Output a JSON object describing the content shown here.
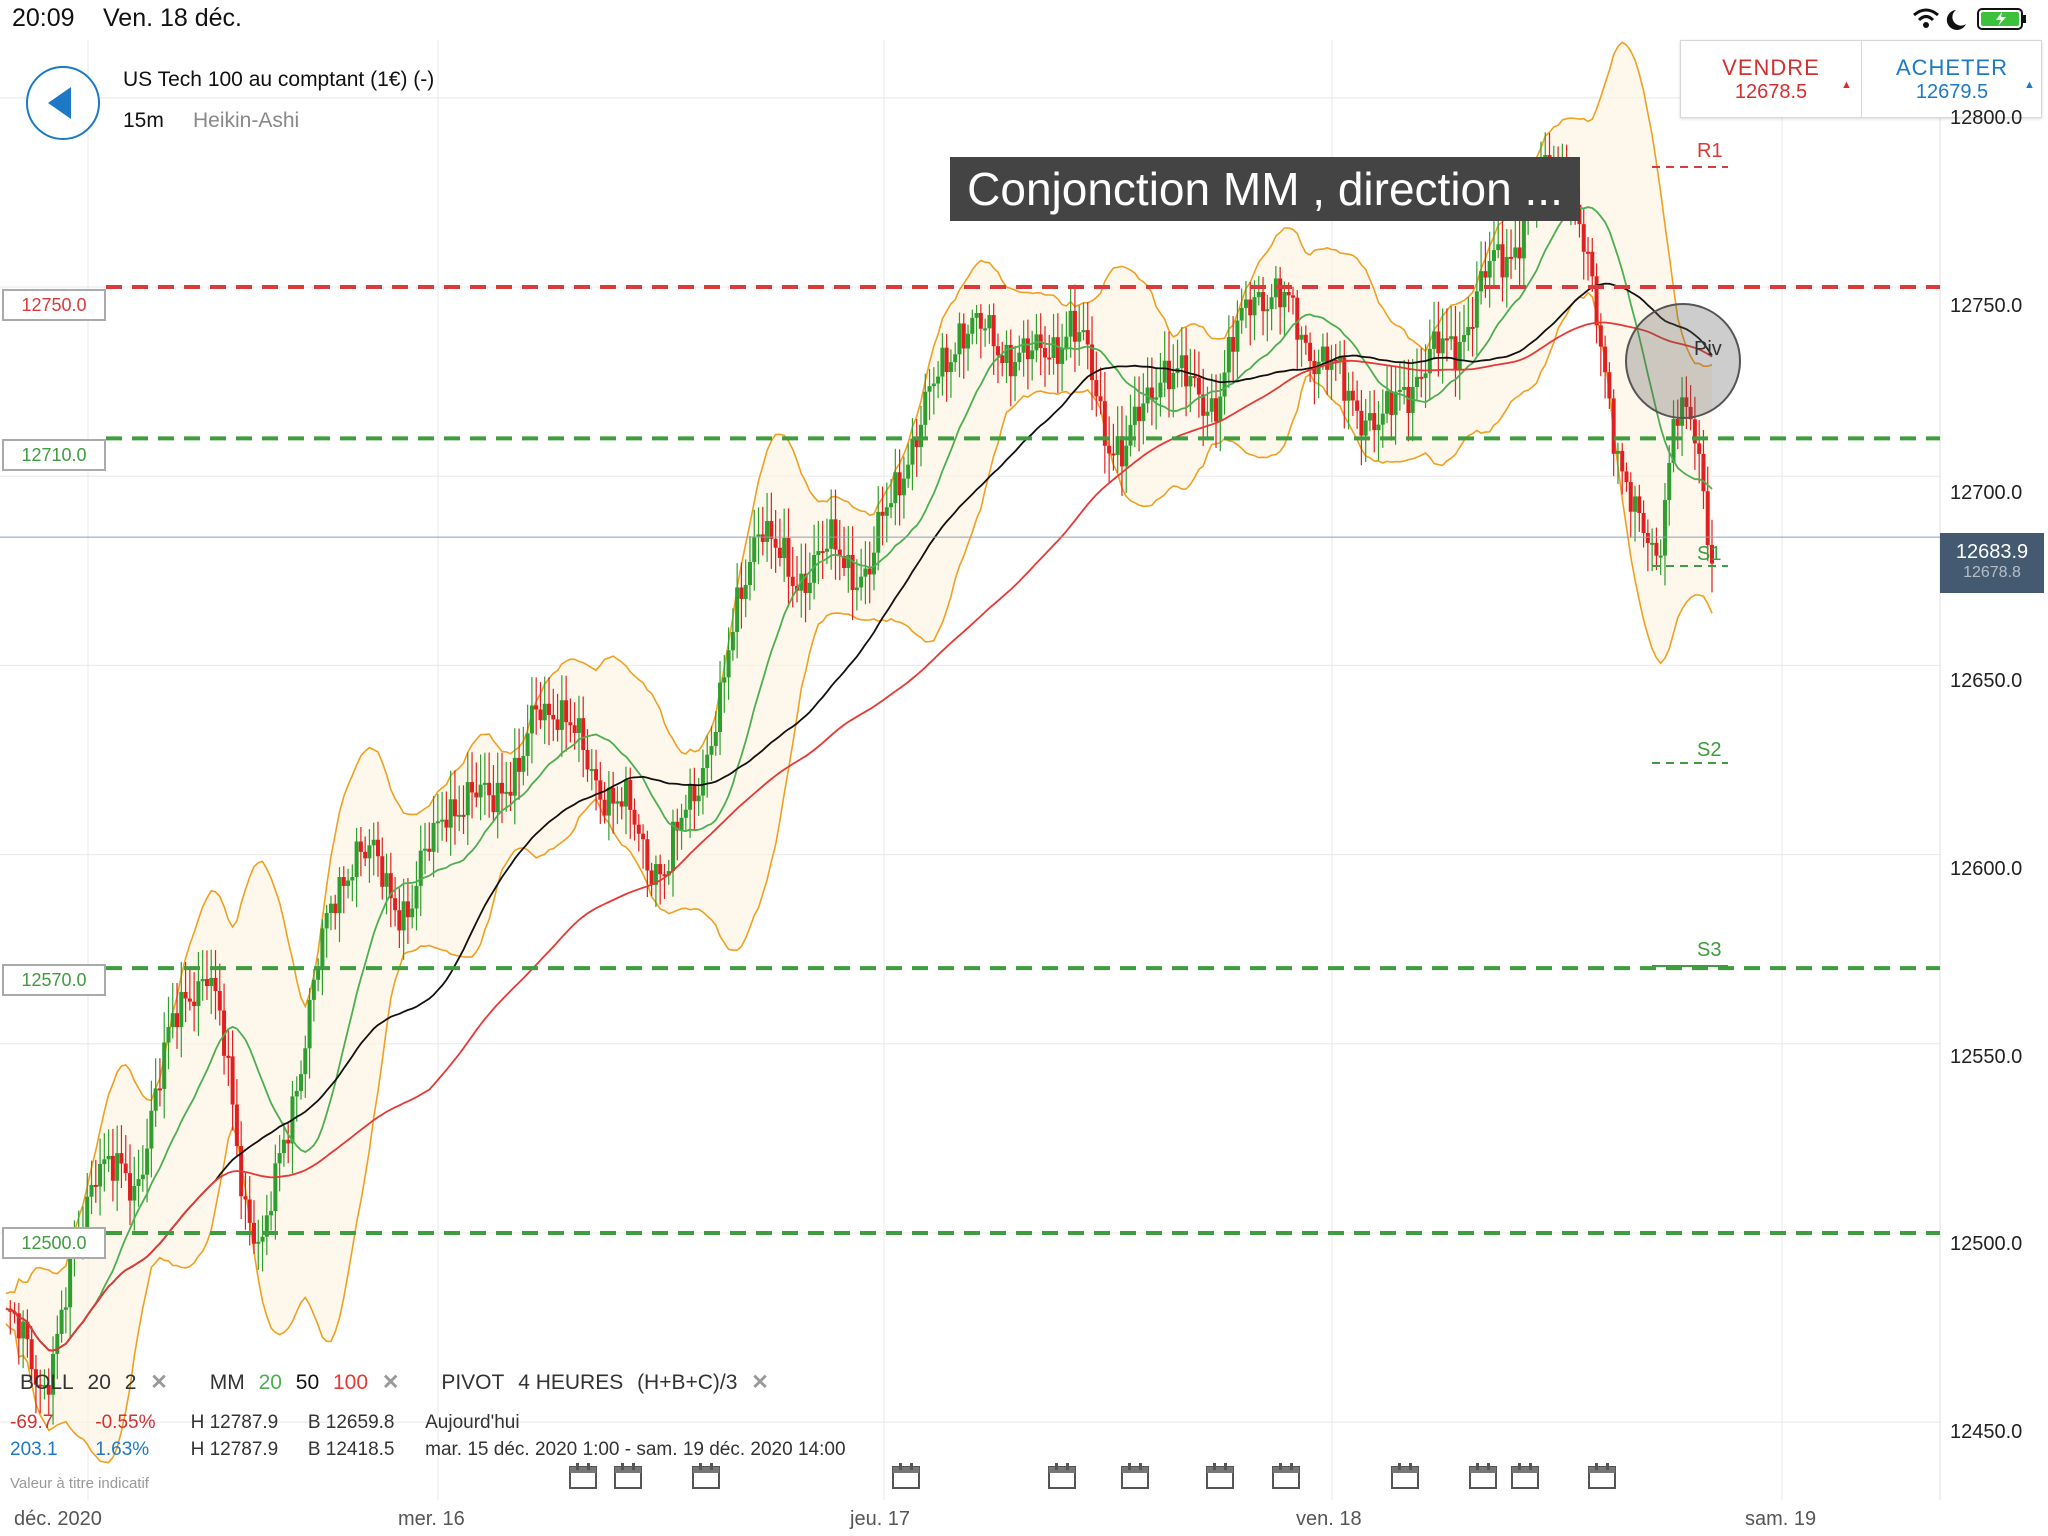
{
  "status_bar": {
    "time": "20:09",
    "date": "Ven. 18 déc."
  },
  "header": {
    "instrument": "US Tech 100 au comptant (1€) (-)",
    "timeframe": "15m",
    "chart_type": "Heikin-Ashi"
  },
  "trade": {
    "sell_label": "VENDRE",
    "sell_price": "12678.5",
    "buy_label": "ACHETER",
    "buy_price": "12679.5"
  },
  "annotation": "Conjonction MM , direction ...",
  "price_levels": [
    {
      "label": "12750.0",
      "color": "#d93a3a"
    },
    {
      "label": "12710.0",
      "color": "#3f9c3f"
    },
    {
      "label": "12570.0",
      "color": "#3f9c3f"
    },
    {
      "label": "12500.0",
      "color": "#3f9c3f"
    }
  ],
  "current_price": {
    "top": "12683.9",
    "bottom": "12678.8"
  },
  "y_ticks": [
    "12800.0",
    "12750.0",
    "12700.0",
    "12650.0",
    "12600.0",
    "12550.0",
    "12500.0",
    "12450.0"
  ],
  "x_ticks": [
    "déc. 2020",
    "mer. 16",
    "jeu. 17",
    "ven. 18",
    "sam. 19"
  ],
  "pivots": {
    "r1": "R1",
    "piv": "Piv",
    "s1": "S1",
    "s2": "S2",
    "s3": "S3"
  },
  "indicators": {
    "boll": {
      "name": "BOLL",
      "p1": "20",
      "p2": "2"
    },
    "mm": {
      "name": "MM",
      "p1": "20",
      "p2": "50",
      "p3": "100"
    },
    "pivot": {
      "name": "PIVOT",
      "period": "4 HEURES",
      "formula": "(H+B+C)/3"
    },
    "close": "✕"
  },
  "stats": {
    "day": {
      "change": "-69.7",
      "pct": "-0.55%",
      "high": "H 12787.9",
      "low": "B 12659.8",
      "label": "Aujourd'hui"
    },
    "range": {
      "change": "203.1",
      "pct": "1.63%",
      "high": "H 12787.9",
      "low": "B 12418.5",
      "label": "mar. 15 déc. 2020 1:00 - sam. 19 déc. 2020 14:00"
    },
    "note": "Valeur à titre indicatif"
  },
  "colors": {
    "up": "#2e9e2e",
    "down": "#e02020",
    "boll": "#f0a020",
    "mm20": "#4caf50",
    "mm50": "#111111",
    "mm100": "#e53935",
    "accent": "#1d79c5"
  },
  "icons": [
    "back-arrow-icon",
    "wifi-icon",
    "moon-icon",
    "battery-icon",
    "calendar-icon",
    "close-icon"
  ],
  "chart_data": {
    "type": "candlestick",
    "ylim": [
      12450,
      12810
    ],
    "y_ticks": [
      12450,
      12500,
      12550,
      12600,
      12650,
      12700,
      12750,
      12800
    ],
    "x_labels": [
      "déc. 2020",
      "mer. 16",
      "jeu. 17",
      "ven. 18",
      "sam. 19"
    ],
    "close_path": [
      12478,
      12470,
      12460,
      12475,
      12500,
      12522,
      12515,
      12510,
      12535,
      12552,
      12565,
      12570,
      12545,
      12510,
      12495,
      12520,
      12545,
      12570,
      12590,
      12602,
      12598,
      12590,
      12585,
      12600,
      12615,
      12612,
      12615,
      12620,
      12620,
      12640,
      12640,
      12630,
      12622,
      12615,
      12610,
      12600,
      12595,
      12610,
      12625,
      12640,
      12668,
      12690,
      12678,
      12672,
      12678,
      12680,
      12677,
      12674,
      12690,
      12705,
      12715,
      12728,
      12740,
      12738,
      12735,
      12733,
      12730,
      12735,
      12740,
      12730,
      12712,
      12705,
      12718,
      12730,
      12725,
      12722,
      12720,
      12735,
      12750,
      12748,
      12743,
      12735,
      12730,
      12722,
      12718,
      12712,
      12722,
      12728,
      12732,
      12735,
      12745,
      12755,
      12760,
      12770,
      12780,
      12785,
      12760,
      12732,
      12705,
      12685,
      12678,
      12720,
      12710,
      12680
    ],
    "horizontal_levels": [
      12750,
      12710,
      12570,
      12500
    ],
    "last_price": 12683.9
  }
}
